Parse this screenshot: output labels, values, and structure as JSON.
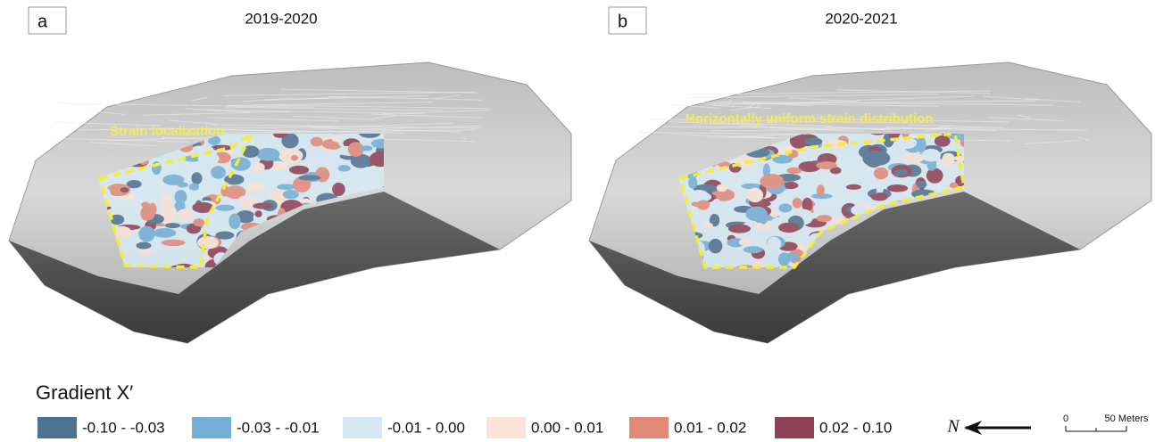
{
  "panels": [
    {
      "label": "a",
      "title": "2019-2020",
      "annotation": "Strain localization"
    },
    {
      "label": "b",
      "title": "2020-2021",
      "annotation": "Horizontally uniform strain distribution"
    }
  ],
  "legend": {
    "title": "Gradient X′",
    "items": [
      {
        "label": "-0.10 - -0.03",
        "color": "#4f7192"
      },
      {
        "label": "-0.03 - -0.01",
        "color": "#74afd6"
      },
      {
        "label": "-0.01  - 0.00",
        "color": "#d6eaf5"
      },
      {
        "label": "0.00 - 0.01",
        "color": "#fbe3d8"
      },
      {
        "label": "0.01 - 0.02",
        "color": "#e18a7a"
      },
      {
        "label": "0.02 - 0.10",
        "color": "#8d4258"
      }
    ]
  },
  "north_arrow": {
    "label": "N"
  },
  "scale_bar": {
    "start": "0",
    "end": "50 Meters"
  }
}
